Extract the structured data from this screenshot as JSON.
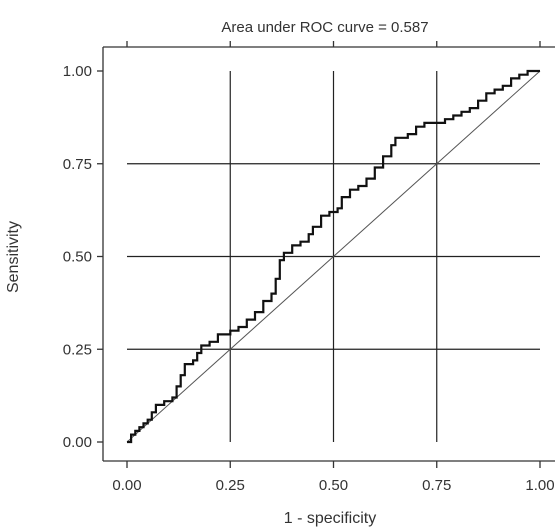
{
  "chart_data": {
    "type": "line",
    "title": "Area under ROC curve = 0.587",
    "xlabel": "1 - specificity",
    "ylabel": "Sensitivity",
    "xlim": [
      0,
      1
    ],
    "ylim": [
      0,
      1
    ],
    "x_ticks": [
      "0.00",
      "0.25",
      "0.50",
      "0.75",
      "1.00"
    ],
    "y_ticks": [
      "0.00",
      "0.25",
      "0.50",
      "0.75",
      "1.00"
    ],
    "grid": true,
    "series": [
      {
        "values": [
          [
            0.0,
            0.0
          ],
          [
            0.01,
            0.01
          ],
          [
            0.01,
            0.02
          ],
          [
            0.02,
            0.03
          ],
          [
            0.03,
            0.04
          ],
          [
            0.04,
            0.05
          ],
          [
            0.05,
            0.06
          ],
          [
            0.06,
            0.08
          ],
          [
            0.07,
            0.1
          ],
          [
            0.09,
            0.11
          ],
          [
            0.11,
            0.12
          ],
          [
            0.12,
            0.15
          ],
          [
            0.13,
            0.18
          ],
          [
            0.14,
            0.21
          ],
          [
            0.16,
            0.22
          ],
          [
            0.17,
            0.24
          ],
          [
            0.18,
            0.26
          ],
          [
            0.2,
            0.27
          ],
          [
            0.22,
            0.29
          ],
          [
            0.25,
            0.3
          ],
          [
            0.27,
            0.31
          ],
          [
            0.29,
            0.33
          ],
          [
            0.31,
            0.35
          ],
          [
            0.33,
            0.38
          ],
          [
            0.35,
            0.4
          ],
          [
            0.36,
            0.44
          ],
          [
            0.37,
            0.49
          ],
          [
            0.38,
            0.51
          ],
          [
            0.4,
            0.53
          ],
          [
            0.42,
            0.54
          ],
          [
            0.44,
            0.56
          ],
          [
            0.45,
            0.58
          ],
          [
            0.47,
            0.61
          ],
          [
            0.49,
            0.62
          ],
          [
            0.51,
            0.63
          ],
          [
            0.52,
            0.66
          ],
          [
            0.54,
            0.68
          ],
          [
            0.56,
            0.69
          ],
          [
            0.58,
            0.71
          ],
          [
            0.6,
            0.74
          ],
          [
            0.62,
            0.77
          ],
          [
            0.64,
            0.8
          ],
          [
            0.65,
            0.82
          ],
          [
            0.68,
            0.83
          ],
          [
            0.7,
            0.85
          ],
          [
            0.72,
            0.86
          ],
          [
            0.75,
            0.86
          ],
          [
            0.77,
            0.87
          ],
          [
            0.79,
            0.88
          ],
          [
            0.81,
            0.89
          ],
          [
            0.83,
            0.9
          ],
          [
            0.85,
            0.92
          ],
          [
            0.87,
            0.94
          ],
          [
            0.89,
            0.95
          ],
          [
            0.91,
            0.96
          ],
          [
            0.93,
            0.98
          ],
          [
            0.95,
            0.99
          ],
          [
            0.97,
            1.0
          ],
          [
            1.0,
            1.0
          ]
        ]
      }
    ],
    "reference_line": [
      [
        0,
        0
      ],
      [
        1,
        1
      ]
    ],
    "colors": {
      "curve": "#111111",
      "grid": "#222222",
      "axis": "#333333"
    }
  }
}
